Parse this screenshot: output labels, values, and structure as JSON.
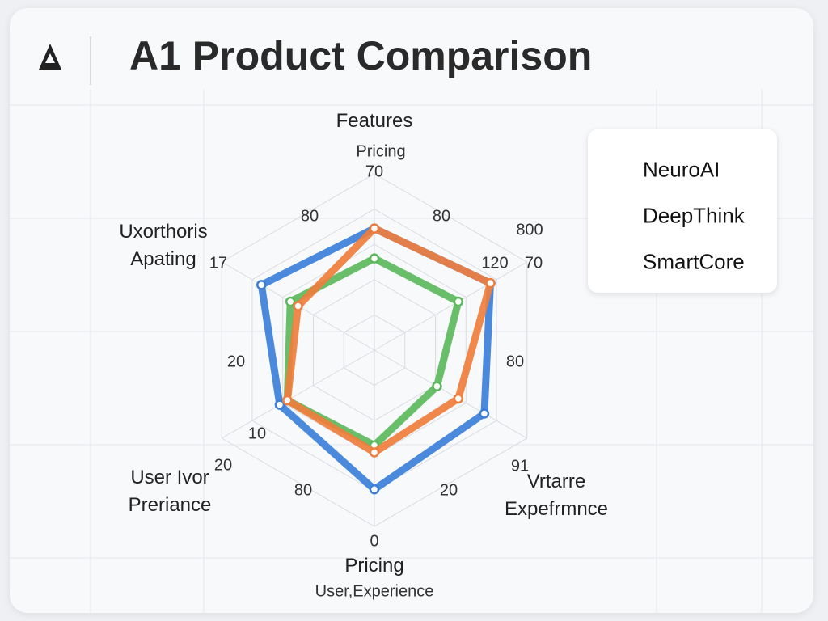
{
  "chart_data": {
    "type": "radar",
    "title": "A1 Product Comparison",
    "categories": [
      "Features",
      null,
      "Vrtarre Expefrmnce",
      "Pricing",
      "User Ivor Preriance",
      "Uxorthoris Apating"
    ],
    "series": [
      {
        "name": "NeuroAI",
        "color": "#3b7fd9",
        "values": [
          69,
          76,
          72,
          79,
          62,
          74
        ]
      },
      {
        "name": "DeepThink",
        "color": "#5cb85c",
        "values": [
          52,
          55,
          41,
          54,
          57,
          55
        ]
      },
      {
        "name": "SmartCore",
        "color": "#ef7d3c",
        "values": [
          69,
          76,
          55,
          58,
          57,
          50
        ]
      }
    ],
    "rlim": [
      0,
      100
    ],
    "annotations": [
      "Pricing",
      "70",
      "80",
      "80",
      "800",
      "120",
      "70",
      "17",
      "20",
      "80",
      "10",
      "20",
      "91",
      "80",
      "20",
      "0",
      "User,Experience"
    ]
  }
}
